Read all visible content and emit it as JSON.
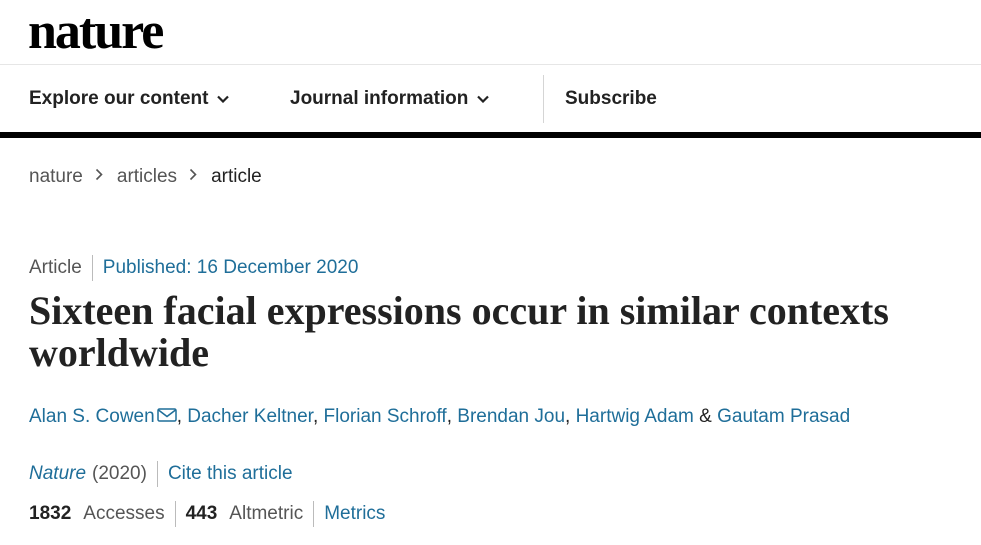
{
  "brand": {
    "logo_text": "nature"
  },
  "nav": {
    "explore_label": "Explore our content",
    "journal_label": "Journal information",
    "subscribe_label": "Subscribe"
  },
  "breadcrumb": {
    "items": [
      "nature",
      "articles",
      "article"
    ]
  },
  "article": {
    "type": "Article",
    "published": "Published: 16 December 2020",
    "title": "Sixteen facial expressions occur in similar contexts worldwide",
    "authors": [
      "Alan S. Cowen",
      "Dacher Keltner",
      "Florian Schroff",
      "Brendan Jou",
      "Hartwig Adam",
      "Gautam Prasad"
    ],
    "author_separator": ", ",
    "last_author_joiner": " & "
  },
  "citation": {
    "journal": "Nature",
    "year": "(2020)",
    "cite_label": "Cite this article"
  },
  "metrics": {
    "accesses_value": "1832",
    "accesses_label": "Accesses",
    "altmetric_value": "443",
    "altmetric_label": "Altmetric",
    "metrics_link": "Metrics"
  },
  "colors": {
    "link": "#1f6e99",
    "text": "#222222",
    "muted": "#555555",
    "header_bar": "#000000"
  }
}
